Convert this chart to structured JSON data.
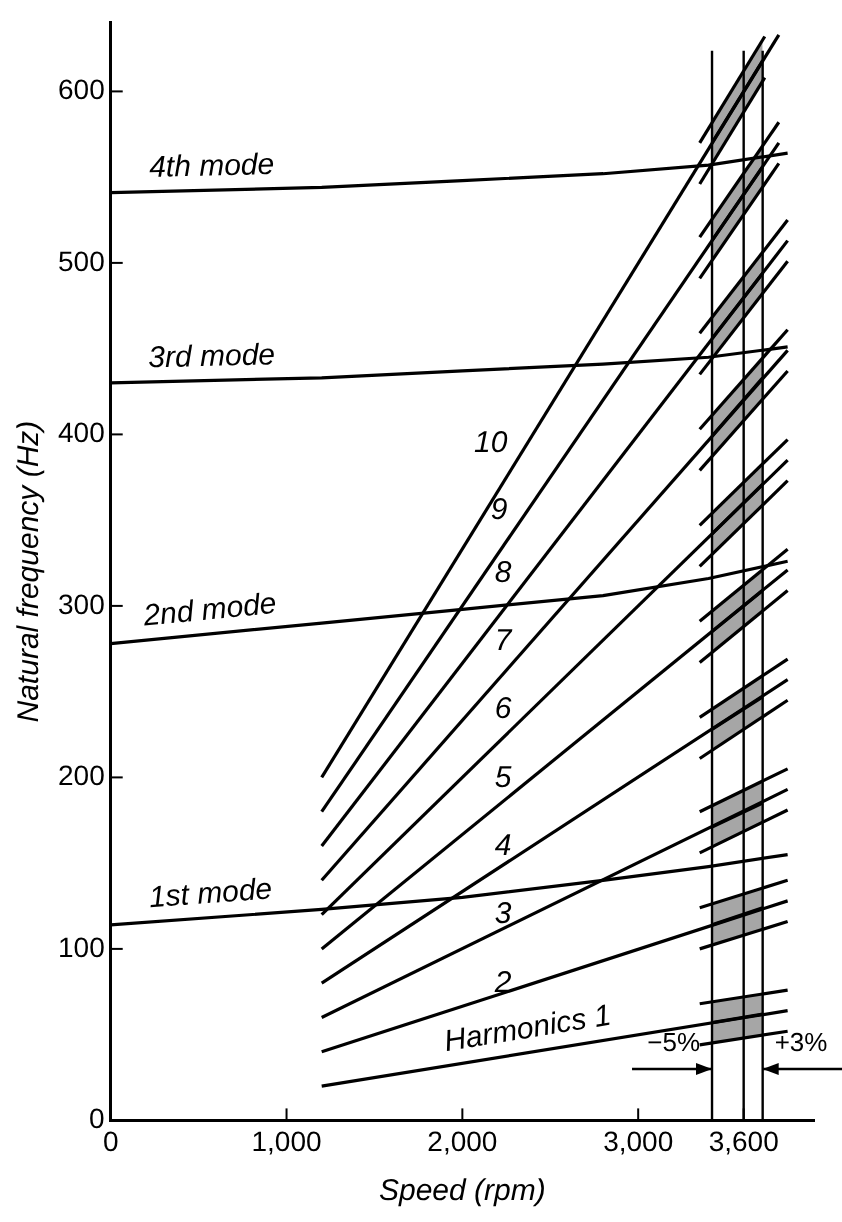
{
  "chart_data": {
    "type": "line",
    "xlabel": "Speed (rpm)",
    "ylabel": "Natural frequency (Hz)",
    "xlim": [
      0,
      4000
    ],
    "ylim": [
      0,
      640
    ],
    "xticks": [
      0,
      {
        "value": 1000,
        "label": "1,000"
      },
      {
        "value": 2000,
        "label": "2,000"
      },
      {
        "value": 3000,
        "label": "3,000"
      },
      {
        "value": 3600,
        "label": "3,600"
      }
    ],
    "yticks": [
      0,
      100,
      200,
      300,
      400,
      500,
      600
    ],
    "grid": false,
    "legend": false,
    "marker": "none",
    "line_style": "solid",
    "series": [
      {
        "name": "1st mode",
        "color": "#000000",
        "x": [
          0,
          1200,
          2000,
          2800,
          3400,
          3850
        ],
        "values": [
          114,
          123,
          130,
          140,
          148,
          155
        ]
      },
      {
        "name": "2nd mode",
        "color": "#000000",
        "x": [
          0,
          1200,
          2000,
          2800,
          3400,
          3850
        ],
        "values": [
          278,
          290,
          298,
          306,
          316,
          326
        ]
      },
      {
        "name": "3rd mode",
        "color": "#000000",
        "x": [
          0,
          1200,
          2000,
          2800,
          3400,
          3850
        ],
        "values": [
          430,
          433,
          437,
          441,
          445,
          451
        ]
      },
      {
        "name": "4th mode",
        "color": "#000000",
        "x": [
          0,
          1200,
          2000,
          2800,
          3400,
          3850
        ],
        "values": [
          541,
          544,
          548,
          552,
          557,
          564
        ]
      },
      {
        "name": "Harmonics 1",
        "color": "#000000",
        "x": [
          1200,
          3850
        ],
        "values": [
          20,
          64
        ]
      },
      {
        "name": "2",
        "color": "#000000",
        "x": [
          1200,
          3850
        ],
        "values": [
          40,
          128
        ]
      },
      {
        "name": "3",
        "color": "#000000",
        "x": [
          1200,
          3850
        ],
        "values": [
          60,
          193
        ]
      },
      {
        "name": "4",
        "color": "#000000",
        "x": [
          1200,
          3850
        ],
        "values": [
          80,
          257
        ]
      },
      {
        "name": "5",
        "color": "#000000",
        "x": [
          1200,
          3850
        ],
        "values": [
          100,
          321
        ]
      },
      {
        "name": "6",
        "color": "#000000",
        "x": [
          1200,
          3850
        ],
        "values": [
          120,
          385
        ]
      },
      {
        "name": "7",
        "color": "#000000",
        "x": [
          1200,
          3850
        ],
        "values": [
          140,
          449
        ]
      },
      {
        "name": "8",
        "color": "#000000",
        "x": [
          1200,
          3850
        ],
        "values": [
          160,
          513
        ]
      },
      {
        "name": "9",
        "color": "#000000",
        "x": [
          1200,
          3800
        ],
        "values": [
          180,
          570
        ]
      },
      {
        "name": "10",
        "color": "#000000",
        "x": [
          1200,
          3800
        ],
        "values": [
          200,
          633
        ]
      },
      {
        "color": "#000000",
        "x": [
          3350,
          3850
        ],
        "values": [
          44,
          52
        ]
      },
      {
        "color": "#000000",
        "x": [
          3350,
          3850
        ],
        "values": [
          68,
          76
        ]
      },
      {
        "color": "#000000",
        "x": [
          3350,
          3850
        ],
        "values": [
          100,
          116
        ]
      },
      {
        "color": "#000000",
        "x": [
          3350,
          3850
        ],
        "values": [
          124,
          140
        ]
      },
      {
        "color": "#000000",
        "x": [
          3350,
          3850
        ],
        "values": [
          156,
          181
        ]
      },
      {
        "color": "#000000",
        "x": [
          3350,
          3850
        ],
        "values": [
          180,
          205
        ]
      },
      {
        "color": "#000000",
        "x": [
          3350,
          3850
        ],
        "values": [
          211,
          245
        ]
      },
      {
        "color": "#000000",
        "x": [
          3350,
          3850
        ],
        "values": [
          235,
          269
        ]
      },
      {
        "color": "#000000",
        "x": [
          3350,
          3850
        ],
        "values": [
          267,
          309
        ]
      },
      {
        "color": "#000000",
        "x": [
          3350,
          3850
        ],
        "values": [
          291,
          333
        ]
      },
      {
        "color": "#000000",
        "x": [
          3350,
          3850
        ],
        "values": [
          323,
          373
        ]
      },
      {
        "color": "#000000",
        "x": [
          3350,
          3850
        ],
        "values": [
          347,
          397
        ]
      },
      {
        "color": "#000000",
        "x": [
          3350,
          3850
        ],
        "values": [
          379,
          437
        ]
      },
      {
        "color": "#000000",
        "x": [
          3350,
          3850
        ],
        "values": [
          403,
          461
        ]
      },
      {
        "color": "#000000",
        "x": [
          3350,
          3850
        ],
        "values": [
          435,
          501
        ]
      },
      {
        "color": "#000000",
        "x": [
          3350,
          3850
        ],
        "values": [
          459,
          525
        ]
      },
      {
        "color": "#000000",
        "x": [
          3350,
          3800
        ],
        "values": [
          491,
          558
        ]
      },
      {
        "color": "#000000",
        "x": [
          3350,
          3800
        ],
        "values": [
          515,
          582
        ]
      },
      {
        "color": "#000000",
        "x": [
          3350,
          3720
        ],
        "values": [
          546,
          608
        ]
      },
      {
        "color": "#000000",
        "x": [
          3350,
          3720
        ],
        "values": [
          570,
          632
        ]
      },
      {
        "color": "#000000",
        "x": [
          3420,
          3708
        ],
        "values": [
          57,
          62
        ],
        "lower": [
          45,
          50
        ],
        "upper": [
          69,
          74
        ]
      },
      {
        "color": "#000000",
        "x": [
          3420,
          3708
        ],
        "values": [
          114,
          124
        ],
        "lower": [
          102,
          112
        ],
        "upper": [
          126,
          136
        ]
      },
      {
        "color": "#000000",
        "x": [
          3420,
          3708
        ],
        "values": [
          171,
          185
        ],
        "lower": [
          159,
          173
        ],
        "upper": [
          183,
          197
        ]
      },
      {
        "color": "#000000",
        "x": [
          3420,
          3708
        ],
        "values": [
          228,
          247
        ],
        "lower": [
          216,
          235
        ],
        "upper": [
          240,
          259
        ]
      },
      {
        "color": "#000000",
        "x": [
          3420,
          3708
        ],
        "values": [
          285,
          309
        ],
        "lower": [
          273,
          297
        ],
        "upper": [
          297,
          321
        ]
      },
      {
        "color": "#000000",
        "x": [
          3420,
          3708
        ],
        "values": [
          342,
          371
        ],
        "lower": [
          330,
          359
        ],
        "upper": [
          354,
          383
        ]
      },
      {
        "color": "#000000",
        "x": [
          3420,
          3708
        ],
        "values": [
          399,
          433
        ],
        "lower": [
          387,
          421
        ],
        "upper": [
          411,
          445
        ]
      },
      {
        "color": "#000000",
        "x": [
          3420,
          3708
        ],
        "values": [
          456,
          494
        ],
        "lower": [
          444,
          482
        ],
        "upper": [
          468,
          506
        ]
      },
      {
        "color": "#000000",
        "x": [
          3420,
          3708
        ],
        "values": [
          513,
          556
        ],
        "lower": [
          501,
          544
        ],
        "upper": [
          525,
          568
        ]
      },
      {
        "color": "#000000",
        "x": [
          3420,
          3708
        ],
        "values": [
          570,
          618
        ],
        "lower": [
          558,
          606
        ],
        "upper": [
          582,
          630
        ]
      }
    ],
    "ref_lines": [
      {
        "axis": "x",
        "value": 3420
      },
      {
        "axis": "x",
        "value": 3600
      },
      {
        "axis": "x",
        "value": 3708
      }
    ],
    "annotations": [
      {
        "text": "−5%",
        "x": 3420,
        "y": 30
      },
      {
        "text": "+3%",
        "x": 3708,
        "y": 30
      }
    ]
  }
}
